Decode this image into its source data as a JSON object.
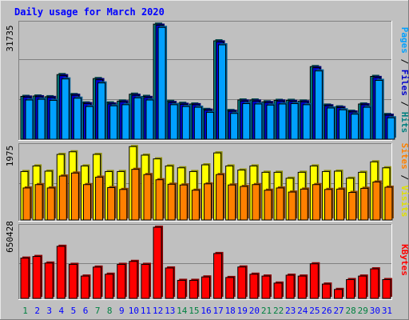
{
  "title": "Daily usage for March 2020",
  "chart_data": [
    {
      "type": "bar",
      "title": "Daily usage for March 2020",
      "ylabel_parts": [
        {
          "text": "Pages",
          "color": "#00a0ff"
        },
        {
          "text": " / ",
          "color": "#000000"
        },
        {
          "text": "Files",
          "color": "#0000cc"
        },
        {
          "text": " / ",
          "color": "#000000"
        },
        {
          "text": "Hits",
          "color": "#008080"
        }
      ],
      "ymax_label": "31735",
      "ymax": 31735,
      "categories": [
        "1",
        "2",
        "3",
        "4",
        "5",
        "6",
        "7",
        "8",
        "9",
        "10",
        "11",
        "12",
        "13",
        "14",
        "15",
        "16",
        "17",
        "18",
        "19",
        "20",
        "21",
        "22",
        "23",
        "24",
        "25",
        "26",
        "27",
        "28",
        "29",
        "30",
        "31"
      ],
      "series": [
        {
          "name": "Hits",
          "color": "#008080",
          "values": [
            11800,
            11900,
            11700,
            17800,
            12300,
            10000,
            16700,
            10000,
            10500,
            12400,
            11800,
            31700,
            10400,
            9900,
            9700,
            8200,
            27100,
            7900,
            10800,
            10800,
            10300,
            10700,
            10700,
            10500,
            20000,
            9400,
            8900,
            7700,
            9700,
            17300,
            6800
          ]
        },
        {
          "name": "Files",
          "color": "#0000cc",
          "values": [
            11600,
            11700,
            11500,
            17500,
            12100,
            9800,
            16400,
            9700,
            10300,
            12100,
            11500,
            31400,
            10100,
            9600,
            9500,
            8000,
            26800,
            7700,
            10500,
            10500,
            10100,
            10500,
            10400,
            10300,
            19700,
            9200,
            8700,
            7500,
            9500,
            17000,
            6600
          ]
        },
        {
          "name": "Pages",
          "color": "#00a0ff",
          "values": [
            10800,
            11000,
            10700,
            16600,
            11300,
            9000,
            15500,
            9200,
            9500,
            11400,
            10800,
            30800,
            9500,
            9000,
            8800,
            7400,
            26000,
            7100,
            9800,
            9700,
            9400,
            9700,
            9800,
            9500,
            18800,
            8600,
            8100,
            6900,
            8800,
            16200,
            5900
          ]
        }
      ]
    },
    {
      "type": "bar",
      "ylabel_parts": [
        {
          "text": "Sites",
          "color": "#ff8000"
        },
        {
          "text": " / ",
          "color": "#000000"
        },
        {
          "text": "Visits",
          "color": "#e0e000"
        }
      ],
      "ymax_label": "1975",
      "ymax": 1975,
      "categories": [
        "1",
        "2",
        "3",
        "4",
        "5",
        "6",
        "7",
        "8",
        "9",
        "10",
        "11",
        "12",
        "13",
        "14",
        "15",
        "16",
        "17",
        "18",
        "19",
        "20",
        "21",
        "22",
        "23",
        "24",
        "25",
        "26",
        "27",
        "28",
        "29",
        "30",
        "31"
      ],
      "series": [
        {
          "name": "Visits",
          "color": "#ffff00",
          "values": [
            1300,
            1450,
            1310,
            1760,
            1830,
            1450,
            1760,
            1300,
            1300,
            1970,
            1740,
            1640,
            1450,
            1400,
            1300,
            1480,
            1800,
            1450,
            1340,
            1450,
            1280,
            1280,
            1120,
            1280,
            1450,
            1300,
            1310,
            1120,
            1280,
            1560,
            1400
          ]
        },
        {
          "name": "Sites",
          "color": "#ff8000",
          "values": [
            860,
            950,
            860,
            1180,
            1260,
            950,
            1150,
            870,
            820,
            1360,
            1220,
            1080,
            960,
            940,
            800,
            970,
            1220,
            940,
            900,
            950,
            800,
            860,
            750,
            830,
            950,
            820,
            830,
            740,
            850,
            1020,
            880
          ]
        }
      ]
    },
    {
      "type": "bar",
      "ylabel_parts": [
        {
          "text": "KBytes",
          "color": "#ff0000"
        }
      ],
      "ymax_label": "650428",
      "ymax": 650428,
      "categories": [
        "1",
        "2",
        "3",
        "4",
        "5",
        "6",
        "7",
        "8",
        "9",
        "10",
        "11",
        "12",
        "13",
        "14",
        "15",
        "16",
        "17",
        "18",
        "19",
        "20",
        "21",
        "22",
        "23",
        "24",
        "25",
        "26",
        "27",
        "28",
        "29",
        "30",
        "31"
      ],
      "series": [
        {
          "name": "KBytes",
          "color": "#ff0000",
          "values": [
            368000,
            383000,
            323000,
            476000,
            311000,
            204000,
            286000,
            221000,
            311000,
            338000,
            311000,
            650000,
            278000,
            165000,
            165000,
            196000,
            410000,
            191000,
            287000,
            221000,
            204000,
            140000,
            212000,
            204000,
            316000,
            131000,
            82000,
            172000,
            204000,
            270000,
            172000
          ]
        }
      ]
    }
  ],
  "weekend_days": [
    1,
    7,
    8,
    14,
    15,
    21,
    22,
    28,
    29
  ],
  "colors": {
    "background": "#c0c0c0",
    "plot_background": "#c0c0c0",
    "grid": "#808080",
    "title": "#0000ff",
    "weekday_label": "#0000ff",
    "weekend_label": "#008040"
  }
}
